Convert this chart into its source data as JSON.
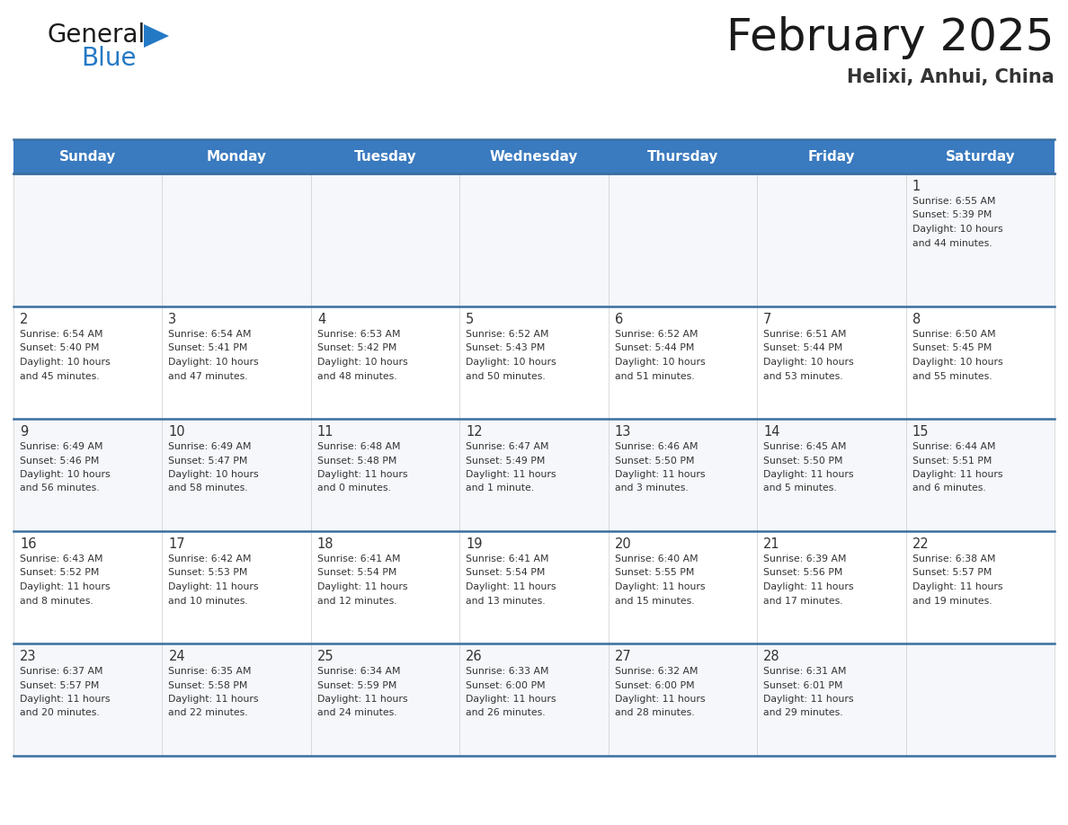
{
  "title": "February 2025",
  "subtitle": "Helixi, Anhui, China",
  "header_bg_color": "#3a7abf",
  "header_text_color": "#ffffff",
  "cell_bg_odd": "#f5f7fa",
  "cell_bg_even": "#ffffff",
  "separator_color": "#3a6fa0",
  "text_color": "#333333",
  "days_of_week": [
    "Sunday",
    "Monday",
    "Tuesday",
    "Wednesday",
    "Thursday",
    "Friday",
    "Saturday"
  ],
  "weeks": [
    [
      {
        "day": null,
        "info": null
      },
      {
        "day": null,
        "info": null
      },
      {
        "day": null,
        "info": null
      },
      {
        "day": null,
        "info": null
      },
      {
        "day": null,
        "info": null
      },
      {
        "day": null,
        "info": null
      },
      {
        "day": 1,
        "info": "Sunrise: 6:55 AM\nSunset: 5:39 PM\nDaylight: 10 hours\nand 44 minutes."
      }
    ],
    [
      {
        "day": 2,
        "info": "Sunrise: 6:54 AM\nSunset: 5:40 PM\nDaylight: 10 hours\nand 45 minutes."
      },
      {
        "day": 3,
        "info": "Sunrise: 6:54 AM\nSunset: 5:41 PM\nDaylight: 10 hours\nand 47 minutes."
      },
      {
        "day": 4,
        "info": "Sunrise: 6:53 AM\nSunset: 5:42 PM\nDaylight: 10 hours\nand 48 minutes."
      },
      {
        "day": 5,
        "info": "Sunrise: 6:52 AM\nSunset: 5:43 PM\nDaylight: 10 hours\nand 50 minutes."
      },
      {
        "day": 6,
        "info": "Sunrise: 6:52 AM\nSunset: 5:44 PM\nDaylight: 10 hours\nand 51 minutes."
      },
      {
        "day": 7,
        "info": "Sunrise: 6:51 AM\nSunset: 5:44 PM\nDaylight: 10 hours\nand 53 minutes."
      },
      {
        "day": 8,
        "info": "Sunrise: 6:50 AM\nSunset: 5:45 PM\nDaylight: 10 hours\nand 55 minutes."
      }
    ],
    [
      {
        "day": 9,
        "info": "Sunrise: 6:49 AM\nSunset: 5:46 PM\nDaylight: 10 hours\nand 56 minutes."
      },
      {
        "day": 10,
        "info": "Sunrise: 6:49 AM\nSunset: 5:47 PM\nDaylight: 10 hours\nand 58 minutes."
      },
      {
        "day": 11,
        "info": "Sunrise: 6:48 AM\nSunset: 5:48 PM\nDaylight: 11 hours\nand 0 minutes."
      },
      {
        "day": 12,
        "info": "Sunrise: 6:47 AM\nSunset: 5:49 PM\nDaylight: 11 hours\nand 1 minute."
      },
      {
        "day": 13,
        "info": "Sunrise: 6:46 AM\nSunset: 5:50 PM\nDaylight: 11 hours\nand 3 minutes."
      },
      {
        "day": 14,
        "info": "Sunrise: 6:45 AM\nSunset: 5:50 PM\nDaylight: 11 hours\nand 5 minutes."
      },
      {
        "day": 15,
        "info": "Sunrise: 6:44 AM\nSunset: 5:51 PM\nDaylight: 11 hours\nand 6 minutes."
      }
    ],
    [
      {
        "day": 16,
        "info": "Sunrise: 6:43 AM\nSunset: 5:52 PM\nDaylight: 11 hours\nand 8 minutes."
      },
      {
        "day": 17,
        "info": "Sunrise: 6:42 AM\nSunset: 5:53 PM\nDaylight: 11 hours\nand 10 minutes."
      },
      {
        "day": 18,
        "info": "Sunrise: 6:41 AM\nSunset: 5:54 PM\nDaylight: 11 hours\nand 12 minutes."
      },
      {
        "day": 19,
        "info": "Sunrise: 6:41 AM\nSunset: 5:54 PM\nDaylight: 11 hours\nand 13 minutes."
      },
      {
        "day": 20,
        "info": "Sunrise: 6:40 AM\nSunset: 5:55 PM\nDaylight: 11 hours\nand 15 minutes."
      },
      {
        "day": 21,
        "info": "Sunrise: 6:39 AM\nSunset: 5:56 PM\nDaylight: 11 hours\nand 17 minutes."
      },
      {
        "day": 22,
        "info": "Sunrise: 6:38 AM\nSunset: 5:57 PM\nDaylight: 11 hours\nand 19 minutes."
      }
    ],
    [
      {
        "day": 23,
        "info": "Sunrise: 6:37 AM\nSunset: 5:57 PM\nDaylight: 11 hours\nand 20 minutes."
      },
      {
        "day": 24,
        "info": "Sunrise: 6:35 AM\nSunset: 5:58 PM\nDaylight: 11 hours\nand 22 minutes."
      },
      {
        "day": 25,
        "info": "Sunrise: 6:34 AM\nSunset: 5:59 PM\nDaylight: 11 hours\nand 24 minutes."
      },
      {
        "day": 26,
        "info": "Sunrise: 6:33 AM\nSunset: 6:00 PM\nDaylight: 11 hours\nand 26 minutes."
      },
      {
        "day": 27,
        "info": "Sunrise: 6:32 AM\nSunset: 6:00 PM\nDaylight: 11 hours\nand 28 minutes."
      },
      {
        "day": 28,
        "info": "Sunrise: 6:31 AM\nSunset: 6:01 PM\nDaylight: 11 hours\nand 29 minutes."
      },
      {
        "day": null,
        "info": null
      }
    ]
  ],
  "logo_text_general": "General",
  "logo_text_blue": "Blue",
  "logo_color_general": "#1a1a1a",
  "logo_color_blue": "#2479c5",
  "logo_triangle_color": "#2479c5"
}
